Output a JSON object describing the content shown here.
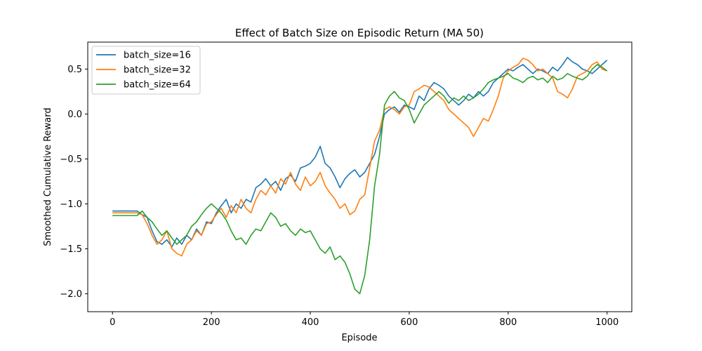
{
  "chart_data": {
    "type": "line",
    "title": "Effect of Batch Size on Episodic Return (MA 50)",
    "xlabel": "Episode",
    "ylabel": "Smoothed Cumulative Reward",
    "xlim": [
      -50,
      1050
    ],
    "ylim": [
      -2.2,
      0.8
    ],
    "xticks": [
      0,
      200,
      400,
      600,
      800,
      1000
    ],
    "yticks": [
      -2.0,
      -1.5,
      -1.0,
      -0.5,
      0.0,
      0.5
    ],
    "ytick_labels": [
      "−2.0",
      "−1.5",
      "−1.0",
      "−0.5",
      "0.0",
      "0.5"
    ],
    "grid": false,
    "legend_position": "top-left",
    "series": [
      {
        "name": "batch_size=16",
        "color": "#1f77b4",
        "points": [
          [
            0,
            -1.08
          ],
          [
            50,
            -1.08
          ],
          [
            60,
            -1.12
          ],
          [
            70,
            -1.15
          ],
          [
            80,
            -1.3
          ],
          [
            90,
            -1.42
          ],
          [
            100,
            -1.45
          ],
          [
            110,
            -1.4
          ],
          [
            120,
            -1.48
          ],
          [
            130,
            -1.38
          ],
          [
            140,
            -1.45
          ],
          [
            150,
            -1.35
          ],
          [
            160,
            -1.4
          ],
          [
            170,
            -1.28
          ],
          [
            180,
            -1.35
          ],
          [
            190,
            -1.2
          ],
          [
            200,
            -1.22
          ],
          [
            210,
            -1.1
          ],
          [
            220,
            -1.02
          ],
          [
            230,
            -0.95
          ],
          [
            240,
            -1.1
          ],
          [
            250,
            -1.0
          ],
          [
            260,
            -1.05
          ],
          [
            270,
            -0.95
          ],
          [
            280,
            -0.98
          ],
          [
            290,
            -0.82
          ],
          [
            300,
            -0.78
          ],
          [
            310,
            -0.72
          ],
          [
            320,
            -0.8
          ],
          [
            330,
            -0.75
          ],
          [
            340,
            -0.85
          ],
          [
            350,
            -0.72
          ],
          [
            360,
            -0.68
          ],
          [
            370,
            -0.75
          ],
          [
            380,
            -0.6
          ],
          [
            390,
            -0.58
          ],
          [
            400,
            -0.55
          ],
          [
            410,
            -0.48
          ],
          [
            420,
            -0.36
          ],
          [
            430,
            -0.55
          ],
          [
            440,
            -0.6
          ],
          [
            450,
            -0.7
          ],
          [
            460,
            -0.82
          ],
          [
            470,
            -0.72
          ],
          [
            480,
            -0.66
          ],
          [
            490,
            -0.62
          ],
          [
            500,
            -0.7
          ],
          [
            510,
            -0.65
          ],
          [
            520,
            -0.55
          ],
          [
            530,
            -0.45
          ],
          [
            540,
            -0.25
          ],
          [
            550,
            0.0
          ],
          [
            560,
            0.05
          ],
          [
            570,
            0.08
          ],
          [
            580,
            0.02
          ],
          [
            590,
            0.1
          ],
          [
            600,
            0.08
          ],
          [
            610,
            0.05
          ],
          [
            620,
            0.2
          ],
          [
            630,
            0.15
          ],
          [
            640,
            0.28
          ],
          [
            650,
            0.35
          ],
          [
            660,
            0.32
          ],
          [
            670,
            0.28
          ],
          [
            680,
            0.2
          ],
          [
            690,
            0.15
          ],
          [
            700,
            0.1
          ],
          [
            710,
            0.15
          ],
          [
            720,
            0.22
          ],
          [
            730,
            0.18
          ],
          [
            740,
            0.25
          ],
          [
            750,
            0.2
          ],
          [
            760,
            0.25
          ],
          [
            770,
            0.35
          ],
          [
            780,
            0.4
          ],
          [
            790,
            0.45
          ],
          [
            800,
            0.5
          ],
          [
            810,
            0.48
          ],
          [
            820,
            0.52
          ],
          [
            830,
            0.55
          ],
          [
            840,
            0.5
          ],
          [
            850,
            0.45
          ],
          [
            860,
            0.5
          ],
          [
            870,
            0.48
          ],
          [
            880,
            0.45
          ],
          [
            890,
            0.52
          ],
          [
            900,
            0.48
          ],
          [
            910,
            0.55
          ],
          [
            920,
            0.63
          ],
          [
            930,
            0.58
          ],
          [
            940,
            0.55
          ],
          [
            950,
            0.5
          ],
          [
            960,
            0.48
          ],
          [
            970,
            0.45
          ],
          [
            980,
            0.5
          ],
          [
            990,
            0.55
          ],
          [
            1000,
            0.6
          ]
        ]
      },
      {
        "name": "batch_size=32",
        "color": "#ff7f0e",
        "points": [
          [
            0,
            -1.1
          ],
          [
            50,
            -1.1
          ],
          [
            60,
            -1.12
          ],
          [
            70,
            -1.22
          ],
          [
            80,
            -1.35
          ],
          [
            90,
            -1.45
          ],
          [
            100,
            -1.4
          ],
          [
            110,
            -1.3
          ],
          [
            120,
            -1.5
          ],
          [
            130,
            -1.55
          ],
          [
            140,
            -1.58
          ],
          [
            150,
            -1.45
          ],
          [
            160,
            -1.4
          ],
          [
            170,
            -1.3
          ],
          [
            180,
            -1.35
          ],
          [
            190,
            -1.22
          ],
          [
            200,
            -1.2
          ],
          [
            210,
            -1.12
          ],
          [
            220,
            -1.05
          ],
          [
            230,
            -1.15
          ],
          [
            240,
            -1.02
          ],
          [
            250,
            -1.1
          ],
          [
            260,
            -0.95
          ],
          [
            270,
            -1.05
          ],
          [
            280,
            -1.1
          ],
          [
            290,
            -0.95
          ],
          [
            300,
            -0.85
          ],
          [
            310,
            -0.9
          ],
          [
            320,
            -0.8
          ],
          [
            330,
            -0.88
          ],
          [
            340,
            -0.72
          ],
          [
            350,
            -0.78
          ],
          [
            360,
            -0.65
          ],
          [
            370,
            -0.78
          ],
          [
            380,
            -0.85
          ],
          [
            390,
            -0.7
          ],
          [
            400,
            -0.8
          ],
          [
            410,
            -0.75
          ],
          [
            420,
            -0.65
          ],
          [
            430,
            -0.8
          ],
          [
            440,
            -0.88
          ],
          [
            450,
            -0.95
          ],
          [
            460,
            -1.05
          ],
          [
            470,
            -1.0
          ],
          [
            480,
            -1.12
          ],
          [
            490,
            -1.08
          ],
          [
            500,
            -0.95
          ],
          [
            510,
            -0.9
          ],
          [
            520,
            -0.6
          ],
          [
            530,
            -0.3
          ],
          [
            540,
            -0.18
          ],
          [
            550,
            0.05
          ],
          [
            560,
            0.08
          ],
          [
            570,
            0.05
          ],
          [
            580,
            0.0
          ],
          [
            590,
            0.08
          ],
          [
            600,
            0.1
          ],
          [
            610,
            0.25
          ],
          [
            620,
            0.28
          ],
          [
            630,
            0.32
          ],
          [
            640,
            0.3
          ],
          [
            650,
            0.25
          ],
          [
            660,
            0.2
          ],
          [
            670,
            0.15
          ],
          [
            680,
            0.05
          ],
          [
            690,
            0.0
          ],
          [
            700,
            -0.05
          ],
          [
            710,
            -0.1
          ],
          [
            720,
            -0.15
          ],
          [
            730,
            -0.25
          ],
          [
            740,
            -0.15
          ],
          [
            750,
            -0.05
          ],
          [
            760,
            -0.08
          ],
          [
            770,
            0.05
          ],
          [
            780,
            0.2
          ],
          [
            790,
            0.4
          ],
          [
            800,
            0.48
          ],
          [
            810,
            0.52
          ],
          [
            820,
            0.55
          ],
          [
            830,
            0.62
          ],
          [
            840,
            0.6
          ],
          [
            850,
            0.55
          ],
          [
            860,
            0.48
          ],
          [
            870,
            0.5
          ],
          [
            880,
            0.45
          ],
          [
            890,
            0.4
          ],
          [
            900,
            0.25
          ],
          [
            910,
            0.22
          ],
          [
            920,
            0.18
          ],
          [
            930,
            0.28
          ],
          [
            940,
            0.42
          ],
          [
            950,
            0.45
          ],
          [
            960,
            0.48
          ],
          [
            970,
            0.55
          ],
          [
            980,
            0.58
          ],
          [
            990,
            0.5
          ],
          [
            1000,
            0.48
          ]
        ]
      },
      {
        "name": "batch_size=64",
        "color": "#2ca02c",
        "points": [
          [
            0,
            -1.13
          ],
          [
            50,
            -1.13
          ],
          [
            60,
            -1.08
          ],
          [
            70,
            -1.15
          ],
          [
            80,
            -1.2
          ],
          [
            90,
            -1.28
          ],
          [
            100,
            -1.35
          ],
          [
            110,
            -1.3
          ],
          [
            120,
            -1.38
          ],
          [
            130,
            -1.45
          ],
          [
            140,
            -1.4
          ],
          [
            150,
            -1.35
          ],
          [
            160,
            -1.25
          ],
          [
            170,
            -1.2
          ],
          [
            180,
            -1.12
          ],
          [
            190,
            -1.05
          ],
          [
            200,
            -1.0
          ],
          [
            210,
            -1.05
          ],
          [
            220,
            -1.1
          ],
          [
            230,
            -1.18
          ],
          [
            240,
            -1.3
          ],
          [
            250,
            -1.4
          ],
          [
            260,
            -1.38
          ],
          [
            270,
            -1.45
          ],
          [
            280,
            -1.35
          ],
          [
            290,
            -1.28
          ],
          [
            300,
            -1.3
          ],
          [
            310,
            -1.2
          ],
          [
            320,
            -1.1
          ],
          [
            330,
            -1.15
          ],
          [
            340,
            -1.25
          ],
          [
            350,
            -1.22
          ],
          [
            360,
            -1.3
          ],
          [
            370,
            -1.35
          ],
          [
            380,
            -1.28
          ],
          [
            390,
            -1.32
          ],
          [
            400,
            -1.3
          ],
          [
            410,
            -1.4
          ],
          [
            420,
            -1.5
          ],
          [
            430,
            -1.55
          ],
          [
            440,
            -1.48
          ],
          [
            450,
            -1.62
          ],
          [
            460,
            -1.58
          ],
          [
            470,
            -1.65
          ],
          [
            480,
            -1.78
          ],
          [
            490,
            -1.95
          ],
          [
            500,
            -2.0
          ],
          [
            510,
            -1.8
          ],
          [
            520,
            -1.4
          ],
          [
            530,
            -0.8
          ],
          [
            540,
            -0.45
          ],
          [
            550,
            0.1
          ],
          [
            560,
            0.2
          ],
          [
            570,
            0.25
          ],
          [
            580,
            0.18
          ],
          [
            590,
            0.15
          ],
          [
            600,
            0.05
          ],
          [
            610,
            -0.1
          ],
          [
            620,
            0.0
          ],
          [
            630,
            0.1
          ],
          [
            640,
            0.15
          ],
          [
            650,
            0.2
          ],
          [
            660,
            0.25
          ],
          [
            670,
            0.2
          ],
          [
            680,
            0.12
          ],
          [
            690,
            0.18
          ],
          [
            700,
            0.15
          ],
          [
            710,
            0.2
          ],
          [
            720,
            0.15
          ],
          [
            730,
            0.18
          ],
          [
            740,
            0.22
          ],
          [
            750,
            0.28
          ],
          [
            760,
            0.35
          ],
          [
            770,
            0.38
          ],
          [
            780,
            0.4
          ],
          [
            790,
            0.42
          ],
          [
            800,
            0.45
          ],
          [
            810,
            0.4
          ],
          [
            820,
            0.38
          ],
          [
            830,
            0.35
          ],
          [
            840,
            0.4
          ],
          [
            850,
            0.42
          ],
          [
            860,
            0.38
          ],
          [
            870,
            0.4
          ],
          [
            880,
            0.35
          ],
          [
            890,
            0.42
          ],
          [
            900,
            0.38
          ],
          [
            910,
            0.4
          ],
          [
            920,
            0.45
          ],
          [
            930,
            0.42
          ],
          [
            940,
            0.4
          ],
          [
            950,
            0.38
          ],
          [
            960,
            0.42
          ],
          [
            970,
            0.5
          ],
          [
            980,
            0.55
          ],
          [
            990,
            0.52
          ],
          [
            1000,
            0.48
          ]
        ]
      }
    ]
  }
}
